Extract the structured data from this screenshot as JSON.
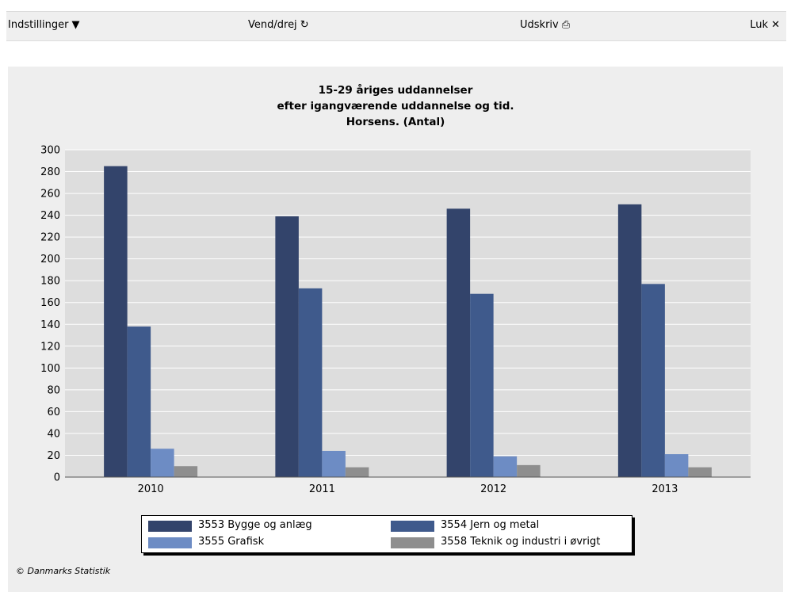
{
  "toolbar": {
    "settings_label": "Indstillinger",
    "settings_icon": "▼",
    "rotate_label": "Vend/drej",
    "rotate_icon": "↻",
    "print_label": "Udskriv",
    "print_icon": "⎙",
    "close_label": "Luk",
    "close_icon": "✕"
  },
  "chart_data": {
    "type": "bar",
    "title_lines": [
      "15-29 åriges uddannelser",
      "efter igangværende uddannelse og tid.",
      "Horsens. (Antal)"
    ],
    "categories": [
      "2010",
      "2011",
      "2012",
      "2013"
    ],
    "series": [
      {
        "name": "3553 Bygge og anlæg",
        "values": [
          285,
          239,
          246,
          250
        ],
        "color": "#33446b"
      },
      {
        "name": "3554 Jern og metal",
        "values": [
          138,
          173,
          168,
          177
        ],
        "color": "#3f5a8c"
      },
      {
        "name": "3555 Grafisk",
        "values": [
          26,
          24,
          19,
          21
        ],
        "color": "#6d8cc4"
      },
      {
        "name": "3558 Teknik og industri i øvrigt",
        "values": [
          10,
          9,
          11,
          9
        ],
        "color": "#8e8e8e"
      }
    ],
    "ylim": [
      0,
      300
    ],
    "yticks": [
      "0",
      "20",
      "40",
      "60",
      "80",
      "100",
      "120",
      "140",
      "160",
      "180",
      "200",
      "220",
      "240",
      "260",
      "280",
      "300"
    ],
    "grid": true,
    "legend_position": "bottom"
  },
  "copyright": "© Danmarks Statistik"
}
